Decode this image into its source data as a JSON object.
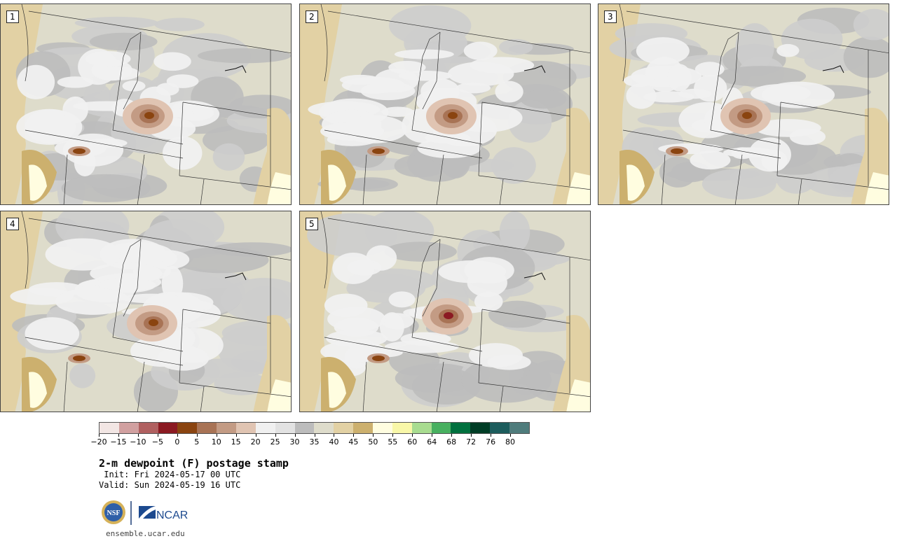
{
  "panels": [
    {
      "number": "1"
    },
    {
      "number": "2"
    },
    {
      "number": "3"
    },
    {
      "number": "4"
    },
    {
      "number": "5"
    }
  ],
  "colorbar": {
    "colors": [
      "#f2e6e4",
      "#d1a0a0",
      "#b06060",
      "#8b1a22",
      "#8a4410",
      "#a87355",
      "#c39b84",
      "#e0c4b2",
      "#f0f0f0",
      "#e2e2e2",
      "#bcbcbc",
      "#dedccb",
      "#e2d1a4",
      "#ccb06e",
      "#fffde0",
      "#f8f7a8",
      "#a8dc90",
      "#48b060",
      "#00703e",
      "#003d26",
      "#1c5c5c",
      "#4f7c7c"
    ],
    "tick_labels": [
      "−20",
      "−15",
      "−10",
      "−5",
      "0",
      "5",
      "10",
      "15",
      "20",
      "25",
      "30",
      "35",
      "40",
      "45",
      "50",
      "55",
      "60",
      "64",
      "68",
      "72",
      "76",
      "80"
    ]
  },
  "title": "2-m dewpoint (F) postage stamp",
  "init_line": " Init: Fri 2024-05-17 00 UTC",
  "valid_line": "Valid: Sun 2024-05-19 16 UTC",
  "logo": {
    "nsf": "NSF",
    "ncar": "NCAR"
  },
  "site": "ensemble.ucar.edu"
}
